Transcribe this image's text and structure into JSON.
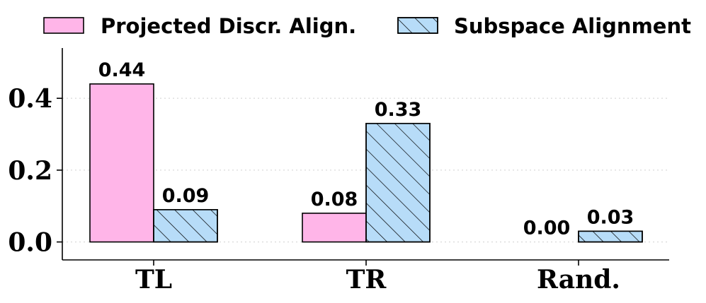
{
  "chart_data": {
    "type": "bar",
    "categories": [
      "TL",
      "TR",
      "Rand."
    ],
    "series": [
      {
        "name": "Projected Discr. Align.",
        "values": [
          0.44,
          0.08,
          0.0
        ],
        "labels": [
          "0.44",
          "0.08",
          "0.00"
        ],
        "color": "#ffb5e8",
        "hatch": false
      },
      {
        "name": "Subspace Alignment",
        "values": [
          0.09,
          0.33,
          0.03
        ],
        "labels": [
          "0.09",
          "0.33",
          "0.03"
        ],
        "color": "#b7dcf8",
        "hatch": true
      }
    ],
    "yticks": [
      0.0,
      0.2,
      0.4
    ],
    "ytick_labels": [
      "0.0",
      "0.2",
      "0.4"
    ],
    "ylim": [
      -0.05,
      0.54
    ],
    "grid": "horizontal-dotted",
    "legend": "top"
  }
}
